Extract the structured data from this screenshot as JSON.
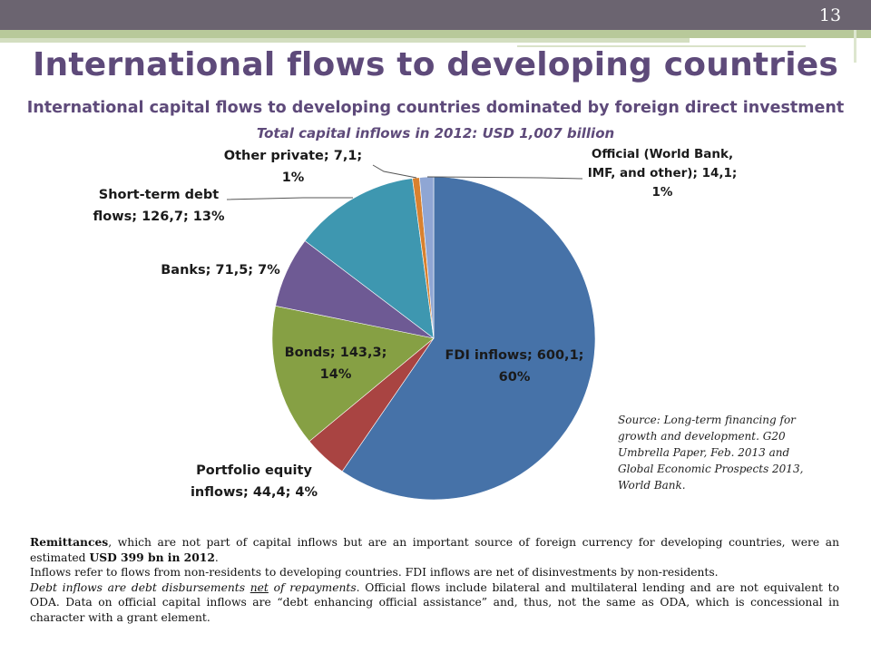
{
  "slide": {
    "number": "13",
    "title": "International flows to developing countries",
    "subtitle": "International capital flows to developing countries dominated by foreign direct investment"
  },
  "chart_data": {
    "type": "pie",
    "title": "Total capital inflows in 2012: USD 1,007 billion",
    "start_angle_deg": 0,
    "direction": "clockwise",
    "slices": [
      {
        "key": "fdi",
        "label_l1": "FDI inflows; 600,1;",
        "label_l2": "60%",
        "value": 600.1,
        "percent": 60,
        "color": "#4672a8"
      },
      {
        "key": "portfolio",
        "label_l1": "Portfolio equity",
        "label_l2": "inflows; 44,4; 4%",
        "value": 44.4,
        "percent": 4,
        "color": "#a94442"
      },
      {
        "key": "bonds",
        "label_l1": "Bonds; 143,3;",
        "label_l2": "14%",
        "value": 143.3,
        "percent": 14,
        "color": "#86a044"
      },
      {
        "key": "banks",
        "label_l1": "Banks; 71,5; 7%",
        "label_l2": "",
        "value": 71.5,
        "percent": 7,
        "color": "#6e5a94"
      },
      {
        "key": "shortterm",
        "label_l1": "Short-term debt",
        "label_l2": "flows; 126,7; 13%",
        "value": 126.7,
        "percent": 13,
        "color": "#3e97b0"
      },
      {
        "key": "otherprivate",
        "label_l1": "Other private; 7,1;",
        "label_l2": "1%",
        "value": 7.1,
        "percent": 1,
        "color": "#d8812f"
      },
      {
        "key": "official",
        "label_l1": "Official (World Bank,",
        "label_l2": "IMF, and other); 14,1;",
        "label_l3": "1%",
        "value": 14.1,
        "percent": 1,
        "color": "#8fa6d4"
      }
    ]
  },
  "source": {
    "line1": "Source: Long-term financing for",
    "line2": "growth and development. G20",
    "line3": "Umbrella Paper, Feb. 2013 and",
    "line4": "Global Economic Prospects 2013,",
    "line5": "World Bank."
  },
  "notes": {
    "remit_bold": "Remittances",
    "remit_text": ", which are not part of capital inflows but are an important source of foreign currency for developing countries, were an estimated ",
    "remit_amount": "USD 399 bn in 2012",
    "remit_end": ".",
    "inflows": "Inflows refer to flows from non-residents to developing countries. FDI inflows are net of disinvestments by non-residents.",
    "debt_a": "Debt inflows are debt disbursements ",
    "debt_net": "net",
    "debt_b": " of repayments",
    "debt_rest": ". Official flows include bilateral and multilateral lending and are not equivalent to ODA. Data on official capital inflows are “debt enhancing official assistance” and, thus, not the same as ODA, which is concessional in character with a grant element."
  }
}
